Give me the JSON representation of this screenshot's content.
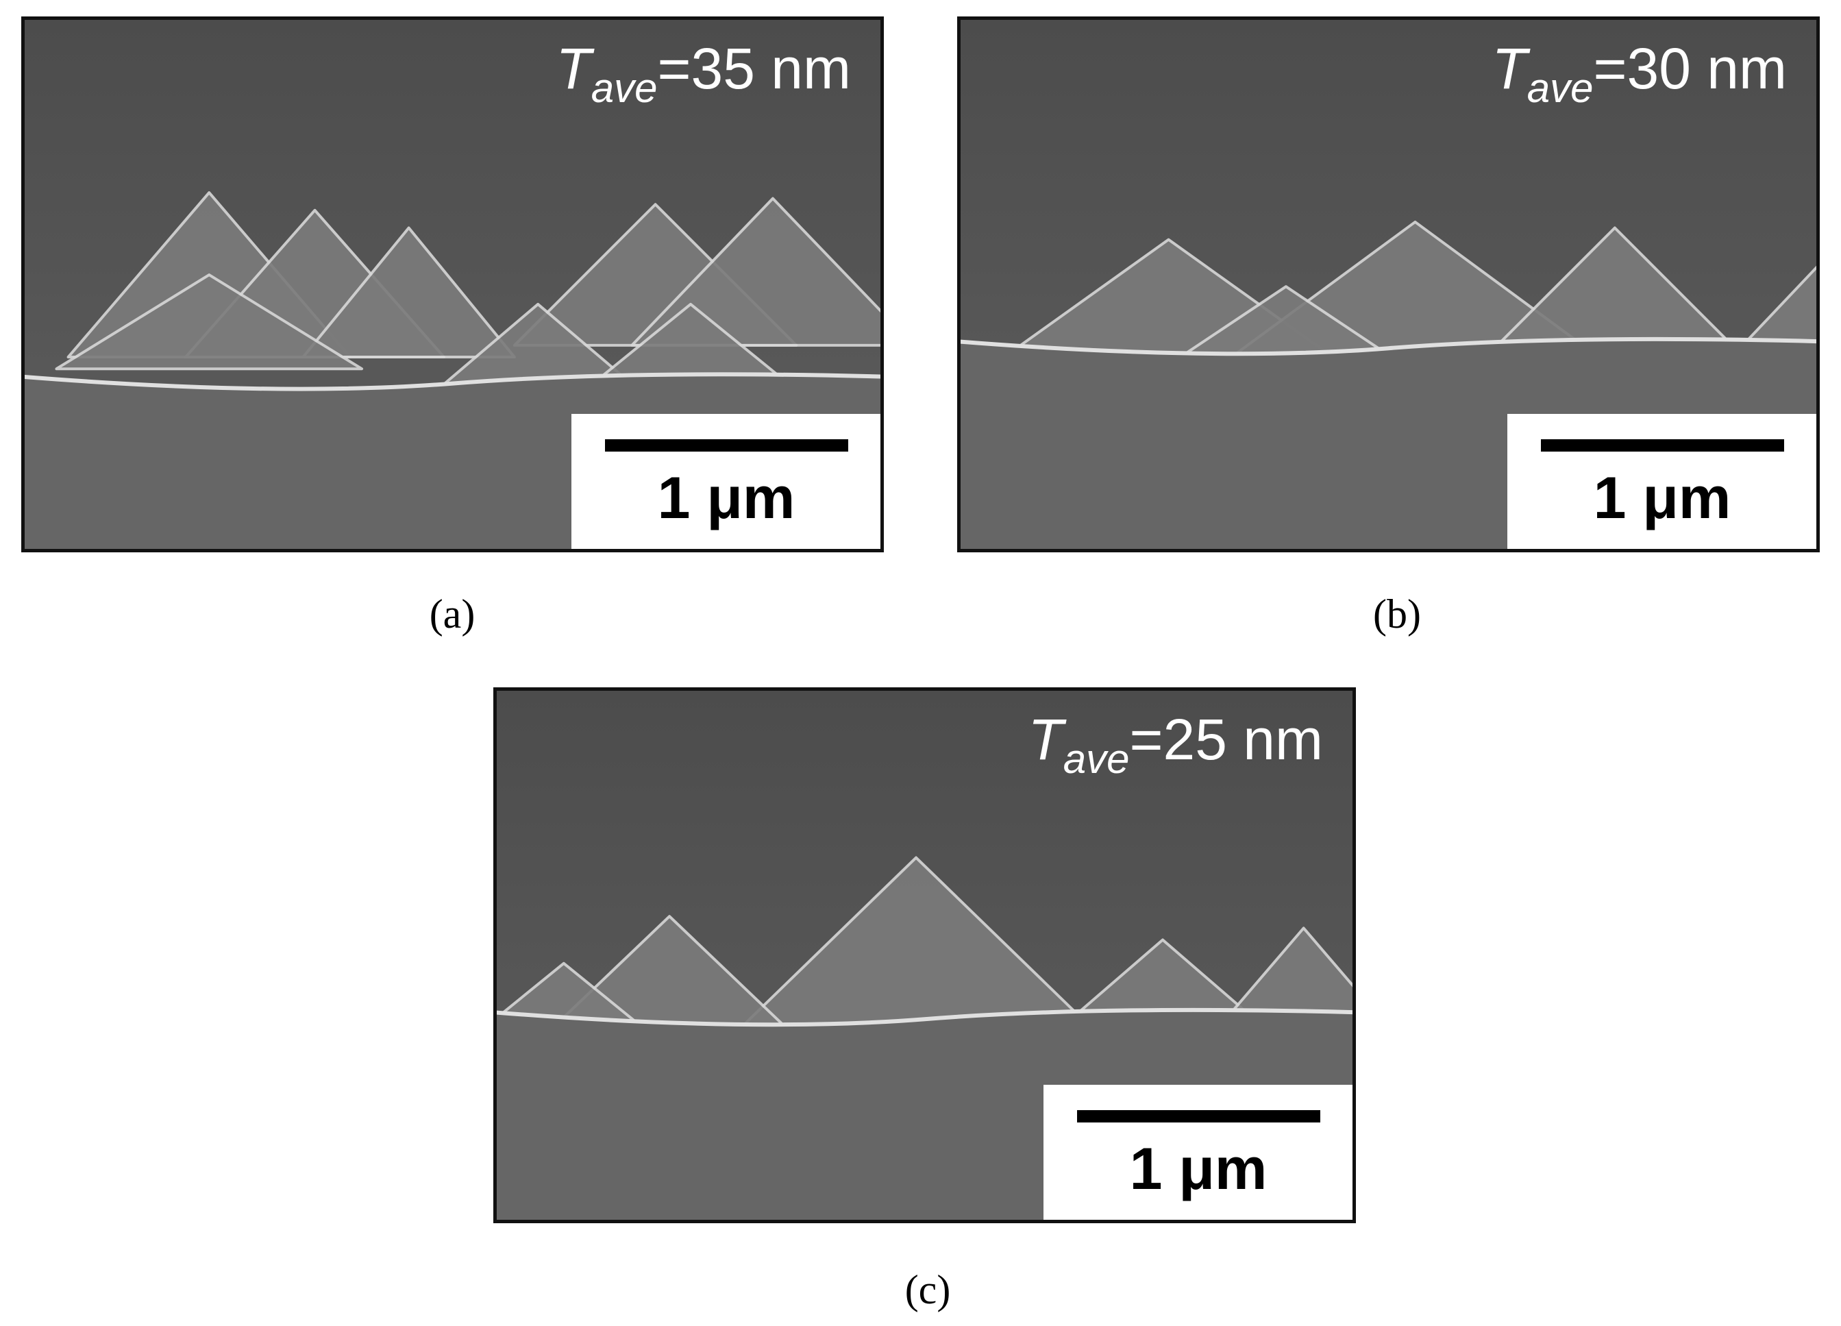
{
  "panels": [
    {
      "label": "(a)",
      "annotation": {
        "symbol": "T",
        "subscript": "ave",
        "value": "=35 nm"
      },
      "scale_bar": "1 μm"
    },
    {
      "label": "(b)",
      "annotation": {
        "symbol": "T",
        "subscript": "ave",
        "value": "=30 nm"
      },
      "scale_bar": "1 μm"
    },
    {
      "label": "(c)",
      "annotation": {
        "symbol": "T",
        "subscript": "ave",
        "value": "=25 nm"
      },
      "scale_bar": "1 μm"
    }
  ]
}
